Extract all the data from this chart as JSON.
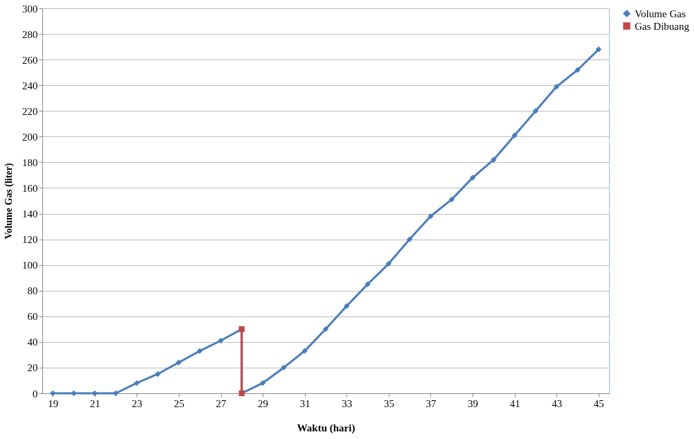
{
  "chart_data": {
    "type": "line",
    "xlabel": "Waktu (hari)",
    "ylabel": "Volume Gas (liter)",
    "xlim": [
      18.5,
      45.5
    ],
    "xticks": [
      19,
      21,
      23,
      25,
      27,
      29,
      31,
      33,
      35,
      37,
      39,
      41,
      43,
      45
    ],
    "ylim": [
      0,
      300
    ],
    "yticks": [
      0,
      20,
      40,
      60,
      80,
      100,
      120,
      140,
      160,
      180,
      200,
      220,
      240,
      260,
      280,
      300
    ],
    "grid": "y",
    "legend": "right",
    "line_style": "solid",
    "series": [
      {
        "name": "Volume Gas",
        "color": "#4a7ebb",
        "marker": "diamond",
        "x": [
          19,
          20,
          21,
          22,
          23,
          24,
          25,
          26,
          27,
          28,
          28,
          29,
          30,
          31,
          32,
          33,
          34,
          35,
          36,
          37,
          38,
          39,
          40,
          41,
          42,
          43,
          44,
          45
        ],
        "values": [
          0,
          0,
          0,
          0,
          8,
          15,
          24,
          33,
          41,
          50,
          0,
          8,
          20,
          33,
          50,
          68,
          85,
          101,
          120,
          138,
          151,
          168,
          182,
          201,
          220,
          239,
          252,
          268
        ]
      },
      {
        "name": "Gas Dibuang",
        "color": "#be4b48",
        "marker": "square",
        "x": [
          28,
          28
        ],
        "values": [
          50,
          0
        ]
      }
    ]
  }
}
